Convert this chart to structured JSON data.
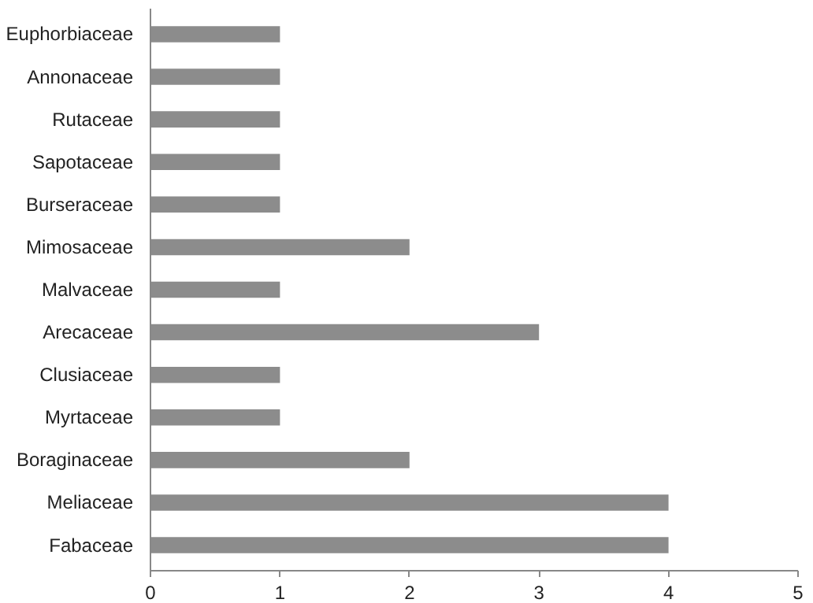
{
  "chart_data": {
    "type": "bar",
    "orientation": "horizontal",
    "categories": [
      "Euphorbiaceae",
      "Annonaceae",
      "Rutaceae",
      "Sapotaceae",
      "Burseraceae",
      "Mimosaceae",
      "Malvaceae",
      "Arecaceae",
      "Clusiaceae",
      "Myrtaceae",
      "Boraginaceae",
      "Meliaceae",
      "Fabaceae"
    ],
    "values": [
      1,
      1,
      1,
      1,
      1,
      2,
      1,
      3,
      1,
      1,
      2,
      4,
      4
    ],
    "color": "#8c8c8c",
    "xlim": [
      0,
      5
    ],
    "xticks": [
      0,
      1,
      2,
      3,
      4,
      5
    ],
    "grid": false
  }
}
